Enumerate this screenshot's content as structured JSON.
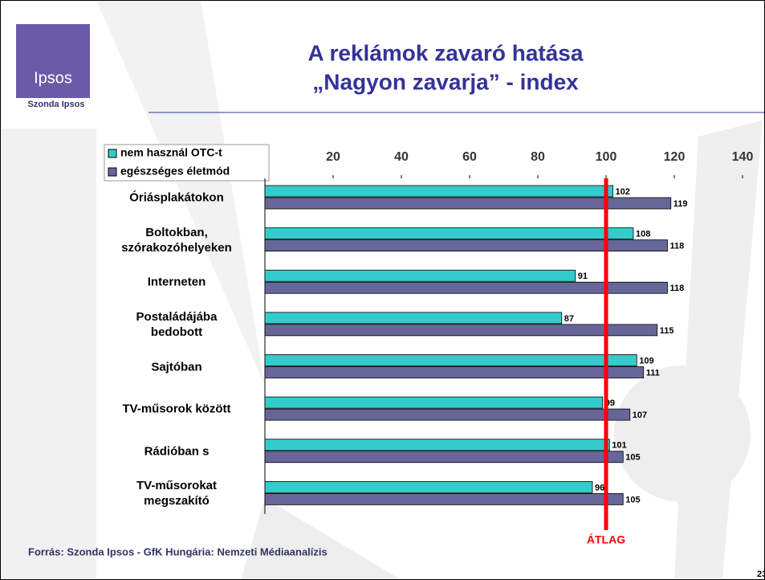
{
  "brand": "Ipsos",
  "brand_caption": "Szonda Ipsos",
  "source": "Forrás: Szonda Ipsos - GfK Hungária: Nemzeti Médiaanalízis",
  "page_number": "23",
  "chart_data": {
    "type": "hbar",
    "title": "A reklámok zavaró hatása",
    "subtitle": "„Nagyon zavarja” - index",
    "categories": [
      "Óriásplakátokon",
      "Boltokban,\nszórakozóhelyeken",
      "Interneten",
      "Postaládájába\nbedobott",
      "Sajtóban",
      "TV-műsorok között",
      "Rádióban s",
      "TV-műsorokat\nmegszakító"
    ],
    "series": [
      {
        "name": "nem használ OTC-t",
        "color": "#33cccc",
        "values": [
          102,
          108,
          91,
          87,
          109,
          99,
          101,
          96
        ]
      },
      {
        "name": "egészséges életmód",
        "color": "#666699",
        "values": [
          119,
          118,
          118,
          115,
          111,
          107,
          105,
          105
        ]
      }
    ],
    "xlim": [
      0,
      140
    ],
    "xticks": [
      20,
      40,
      60,
      80,
      100,
      120,
      140
    ],
    "grid": false,
    "legend": "top-left",
    "reference_line": {
      "value": 100,
      "label": "ÁTLAG",
      "color": "#ff0000"
    }
  }
}
